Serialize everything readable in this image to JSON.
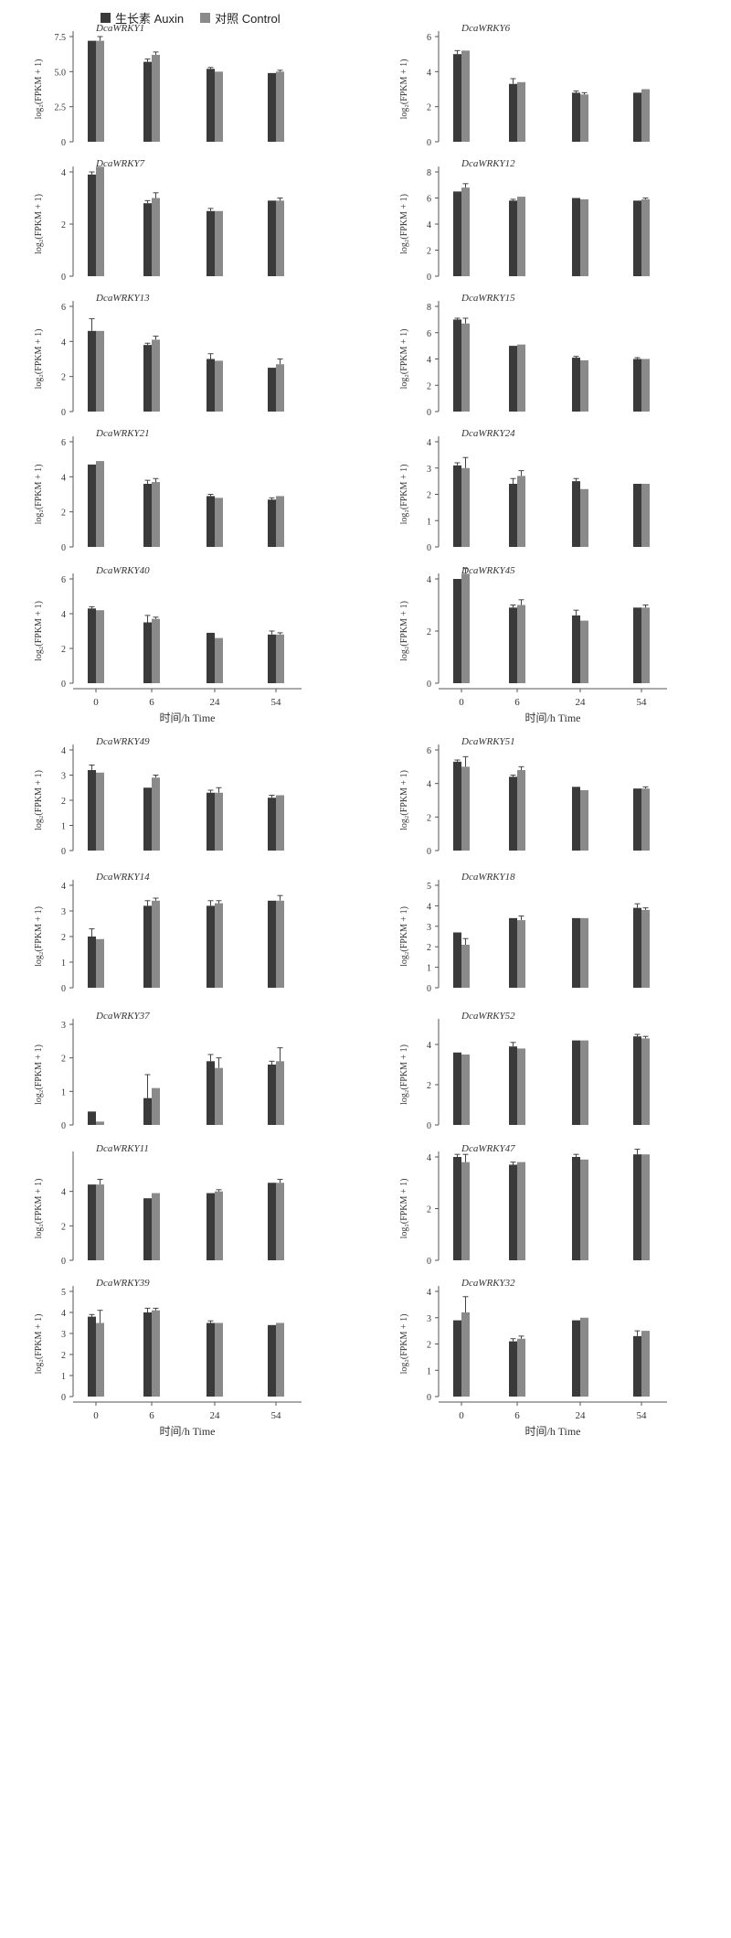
{
  "legend": {
    "auxin_label": "生长素 Auxin",
    "control_label": "对照 Control"
  },
  "colors": {
    "auxin": "#3a3a3a",
    "control": "#8a8a8a",
    "axis": "#555555",
    "err": "#444444"
  },
  "chart_data": [
    {
      "type": "bar",
      "title": "DcaWRKY1",
      "ylabel": "log₂(FPKM + 1)",
      "categories": [
        "0",
        "6",
        "24",
        "54"
      ],
      "ylim": [
        0,
        7.5
      ],
      "yticks": [
        "0",
        "2.5",
        "5.0",
        "7.5"
      ],
      "series": [
        {
          "name": "生长素 Auxin",
          "values": [
            7.2,
            5.7,
            5.2,
            4.9
          ],
          "err": [
            0,
            0.2,
            0.1,
            0
          ]
        },
        {
          "name": "对照 Control",
          "values": [
            7.2,
            6.2,
            5.0,
            5.0
          ],
          "err": [
            0.3,
            0.2,
            0,
            0.1
          ]
        }
      ]
    },
    {
      "type": "bar",
      "title": "DcaWRKY6",
      "ylabel": "log₂(FPKM + 1)",
      "categories": [
        "0",
        "6",
        "24",
        "54"
      ],
      "ylim": [
        0,
        6
      ],
      "yticks": [
        "0",
        "2",
        "4",
        "6"
      ],
      "series": [
        {
          "name": "生长素 Auxin",
          "values": [
            5.0,
            3.3,
            2.8,
            2.8
          ],
          "err": [
            0.2,
            0.3,
            0.1,
            0
          ]
        },
        {
          "name": "对照 Control",
          "values": [
            5.2,
            3.4,
            2.7,
            3.0
          ],
          "err": [
            0,
            0,
            0.1,
            0
          ]
        }
      ]
    },
    {
      "type": "bar",
      "title": "DcaWRKY7",
      "ylabel": "log₂(FPKM + 1)",
      "categories": [
        "0",
        "6",
        "24",
        "54"
      ],
      "ylim": [
        0,
        4
      ],
      "yticks": [
        "0",
        "2",
        "4"
      ],
      "series": [
        {
          "name": "生长素 Auxin",
          "values": [
            3.9,
            2.8,
            2.5,
            2.9
          ],
          "err": [
            0.1,
            0.1,
            0.1,
            0
          ]
        },
        {
          "name": "对照 Control",
          "values": [
            4.2,
            3.0,
            2.5,
            2.9
          ],
          "err": [
            0,
            0.2,
            0,
            0.1
          ]
        }
      ]
    },
    {
      "type": "bar",
      "title": "DcaWRKY12",
      "ylabel": "log₂(FPKM + 1)",
      "categories": [
        "0",
        "6",
        "24",
        "54"
      ],
      "ylim": [
        0,
        8
      ],
      "yticks": [
        "0",
        "2",
        "4",
        "6",
        "8"
      ],
      "series": [
        {
          "name": "生长素 Auxin",
          "values": [
            6.5,
            5.8,
            6.0,
            5.8
          ],
          "err": [
            0,
            0.1,
            0,
            0
          ]
        },
        {
          "name": "对照 Control",
          "values": [
            6.8,
            6.1,
            5.9,
            5.9
          ],
          "err": [
            0.3,
            0,
            0,
            0.1
          ]
        }
      ]
    },
    {
      "type": "bar",
      "title": "DcaWRKY13",
      "ylabel": "log₂(FPKM + 1)",
      "categories": [
        "0",
        "6",
        "24",
        "54"
      ],
      "ylim": [
        0,
        6
      ],
      "yticks": [
        "0",
        "2",
        "4",
        "6"
      ],
      "series": [
        {
          "name": "生长素 Auxin",
          "values": [
            4.6,
            3.8,
            3.0,
            2.5
          ],
          "err": [
            0.7,
            0.1,
            0.3,
            0
          ]
        },
        {
          "name": "对照 Control",
          "values": [
            4.6,
            4.1,
            2.9,
            2.7
          ],
          "err": [
            0,
            0.2,
            0,
            0.3
          ]
        }
      ]
    },
    {
      "type": "bar",
      "title": "DcaWRKY15",
      "ylabel": "log₂(FPKM + 1)",
      "categories": [
        "0",
        "6",
        "24",
        "54"
      ],
      "ylim": [
        0,
        8
      ],
      "yticks": [
        "0",
        "2",
        "4",
        "6",
        "8"
      ],
      "series": [
        {
          "name": "生长素 Auxin",
          "values": [
            7.0,
            5.0,
            4.1,
            4.0
          ],
          "err": [
            0.1,
            0,
            0.1,
            0.1
          ]
        },
        {
          "name": "对照 Control",
          "values": [
            6.7,
            5.1,
            3.9,
            4.0
          ],
          "err": [
            0.4,
            0,
            0,
            0
          ]
        }
      ]
    },
    {
      "type": "bar",
      "title": "DcaWRKY21",
      "ylabel": "log₂(FPKM + 1)",
      "categories": [
        "0",
        "6",
        "24",
        "54"
      ],
      "ylim": [
        0,
        6
      ],
      "yticks": [
        "0",
        "2",
        "4",
        "6"
      ],
      "series": [
        {
          "name": "生长素 Auxin",
          "values": [
            4.7,
            3.6,
            2.9,
            2.7
          ],
          "err": [
            0,
            0.2,
            0.1,
            0.1
          ]
        },
        {
          "name": "对照 Control",
          "values": [
            4.9,
            3.7,
            2.8,
            2.9
          ],
          "err": [
            0,
            0.2,
            0,
            0
          ]
        }
      ]
    },
    {
      "type": "bar",
      "title": "DcaWRKY24",
      "ylabel": "log₂(FPKM + 1)",
      "categories": [
        "0",
        "6",
        "24",
        "54"
      ],
      "ylim": [
        0,
        4
      ],
      "yticks": [
        "0",
        "1",
        "2",
        "3",
        "4"
      ],
      "series": [
        {
          "name": "生长素 Auxin",
          "values": [
            3.1,
            2.4,
            2.5,
            2.4
          ],
          "err": [
            0.1,
            0.2,
            0.1,
            0
          ]
        },
        {
          "name": "对照 Control",
          "values": [
            3.0,
            2.7,
            2.2,
            2.4
          ],
          "err": [
            0.4,
            0.2,
            0,
            0
          ]
        }
      ]
    },
    {
      "type": "bar",
      "title": "DcaWRKY40",
      "ylabel": "log₂(FPKM + 1)",
      "categories": [
        "0",
        "6",
        "24",
        "54"
      ],
      "ylim": [
        0,
        6
      ],
      "yticks": [
        "0",
        "2",
        "4",
        "6"
      ],
      "series": [
        {
          "name": "生长素 Auxin",
          "values": [
            4.3,
            3.5,
            2.9,
            2.8
          ],
          "err": [
            0.1,
            0.4,
            0,
            0.2
          ]
        },
        {
          "name": "对照 Control",
          "values": [
            4.2,
            3.7,
            2.6,
            2.8
          ],
          "err": [
            0,
            0.1,
            0,
            0.1
          ]
        }
      ]
    },
    {
      "type": "bar",
      "title": "DcaWRKY45",
      "ylabel": "log₂(FPKM + 1)",
      "categories": [
        "0",
        "6",
        "24",
        "54"
      ],
      "ylim": [
        0,
        4
      ],
      "yticks": [
        "0",
        "2",
        "4"
      ],
      "series": [
        {
          "name": "生长素 Auxin",
          "values": [
            4.0,
            2.9,
            2.6,
            2.9
          ],
          "err": [
            0,
            0.1,
            0.2,
            0
          ]
        },
        {
          "name": "对照 Control",
          "values": [
            4.2,
            3.0,
            2.4,
            2.9
          ],
          "err": [
            0.2,
            0.2,
            0,
            0.1
          ]
        }
      ]
    },
    {
      "type": "bar",
      "title": "DcaWRKY49",
      "ylabel": "log₂(FPKM + 1)",
      "categories": [
        "0",
        "6",
        "24",
        "54"
      ],
      "ylim": [
        0,
        4
      ],
      "yticks": [
        "0",
        "1",
        "2",
        "3",
        "4"
      ],
      "series": [
        {
          "name": "生长素 Auxin",
          "values": [
            3.2,
            2.5,
            2.3,
            2.1
          ],
          "err": [
            0.2,
            0,
            0.1,
            0.1
          ]
        },
        {
          "name": "对照 Control",
          "values": [
            3.1,
            2.9,
            2.3,
            2.2
          ],
          "err": [
            0,
            0.1,
            0.2,
            0
          ]
        }
      ]
    },
    {
      "type": "bar",
      "title": "DcaWRKY51",
      "ylabel": "log₂(FPKM + 1)",
      "categories": [
        "0",
        "6",
        "24",
        "54"
      ],
      "ylim": [
        0,
        6
      ],
      "yticks": [
        "0",
        "2",
        "4",
        "6"
      ],
      "series": [
        {
          "name": "生长素 Auxin",
          "values": [
            5.3,
            4.4,
            3.8,
            3.7
          ],
          "err": [
            0.1,
            0.1,
            0,
            0
          ]
        },
        {
          "name": "对照 Control",
          "values": [
            5.0,
            4.8,
            3.6,
            3.7
          ],
          "err": [
            0.6,
            0.2,
            0,
            0.1
          ]
        }
      ]
    },
    {
      "type": "bar",
      "title": "DcaWRKY14",
      "ylabel": "log₂(FPKM + 1)",
      "categories": [
        "0",
        "6",
        "24",
        "54"
      ],
      "ylim": [
        0,
        4
      ],
      "yticks": [
        "0",
        "1",
        "2",
        "3",
        "4"
      ],
      "series": [
        {
          "name": "生长素 Auxin",
          "values": [
            2.0,
            3.2,
            3.2,
            3.4
          ],
          "err": [
            0.3,
            0.2,
            0.2,
            0
          ]
        },
        {
          "name": "对照 Control",
          "values": [
            1.9,
            3.4,
            3.3,
            3.4
          ],
          "err": [
            0,
            0.1,
            0.1,
            0.2
          ]
        }
      ]
    },
    {
      "type": "bar",
      "title": "DcaWRKY18",
      "ylabel": "log₂(FPKM + 1)",
      "categories": [
        "0",
        "6",
        "24",
        "54"
      ],
      "ylim": [
        0,
        5
      ],
      "yticks": [
        "0",
        "1",
        "2",
        "3",
        "4",
        "5"
      ],
      "series": [
        {
          "name": "生长素 Auxin",
          "values": [
            2.7,
            3.4,
            3.4,
            3.9
          ],
          "err": [
            0,
            0,
            0,
            0.2
          ]
        },
        {
          "name": "对照 Control",
          "values": [
            2.1,
            3.3,
            3.4,
            3.8
          ],
          "err": [
            0.3,
            0.2,
            0,
            0.1
          ]
        }
      ]
    },
    {
      "type": "bar",
      "title": "DcaWRKY37",
      "ylabel": "log₂(FPKM + 1)",
      "categories": [
        "0",
        "6",
        "24",
        "54"
      ],
      "ylim": [
        0,
        3
      ],
      "yticks": [
        "0",
        "1",
        "2",
        "3"
      ],
      "series": [
        {
          "name": "生长素 Auxin",
          "values": [
            0.4,
            0.8,
            1.9,
            1.8
          ],
          "err": [
            0,
            0.7,
            0.2,
            0.1
          ]
        },
        {
          "name": "对照 Control",
          "values": [
            0.1,
            1.1,
            1.7,
            1.9
          ],
          "err": [
            0,
            0,
            0.3,
            0.4
          ]
        }
      ]
    },
    {
      "type": "bar",
      "title": "DcaWRKY52",
      "ylabel": "log₂(FPKM + 1)",
      "categories": [
        "0",
        "6",
        "24",
        "54"
      ],
      "ylim": [
        0,
        5
      ],
      "yticks": [
        "0",
        "2",
        "4"
      ],
      "series": [
        {
          "name": "生长素 Auxin",
          "values": [
            3.6,
            3.9,
            4.2,
            4.4
          ],
          "err": [
            0,
            0.2,
            0,
            0.1
          ]
        },
        {
          "name": "对照 Control",
          "values": [
            3.5,
            3.8,
            4.2,
            4.3
          ],
          "err": [
            0,
            0,
            0,
            0.1
          ]
        }
      ]
    },
    {
      "type": "bar",
      "title": "DcaWRKY11",
      "ylabel": "log₂(FPKM + 1)",
      "categories": [
        "0",
        "6",
        "24",
        "54"
      ],
      "ylim": [
        0,
        6
      ],
      "yticks": [
        "0",
        "2",
        "4"
      ],
      "series": [
        {
          "name": "生长素 Auxin",
          "values": [
            4.4,
            3.6,
            3.9,
            4.5
          ],
          "err": [
            0,
            0,
            0,
            0
          ]
        },
        {
          "name": "对照 Control",
          "values": [
            4.4,
            3.9,
            4.0,
            4.5
          ],
          "err": [
            0.3,
            0,
            0.1,
            0.2
          ]
        }
      ]
    },
    {
      "type": "bar",
      "title": "DcaWRKY47",
      "ylabel": "log₂(FPKM + 1)",
      "categories": [
        "0",
        "6",
        "24",
        "54"
      ],
      "ylim": [
        0,
        4
      ],
      "yticks": [
        "0",
        "2",
        "4"
      ],
      "series": [
        {
          "name": "生长素 Auxin",
          "values": [
            4.0,
            3.7,
            4.0,
            4.1
          ],
          "err": [
            0.1,
            0.1,
            0.1,
            0.2
          ]
        },
        {
          "name": "对照 Control",
          "values": [
            3.8,
            3.8,
            3.9,
            4.1
          ],
          "err": [
            0.3,
            0,
            0,
            0
          ]
        }
      ]
    },
    {
      "type": "bar",
      "title": "DcaWRKY39",
      "xlabel": "时间/h  Time",
      "ylabel": "log₂(FPKM + 1)",
      "categories": [
        "0",
        "6",
        "24",
        "54"
      ],
      "ylim": [
        0,
        5
      ],
      "yticks": [
        "0",
        "1",
        "2",
        "3",
        "4",
        "5"
      ],
      "series": [
        {
          "name": "生长素 Auxin",
          "values": [
            3.8,
            4.0,
            3.5,
            3.4
          ],
          "err": [
            0.1,
            0.2,
            0.1,
            0
          ]
        },
        {
          "name": "对照 Control",
          "values": [
            3.5,
            4.1,
            3.5,
            3.5
          ],
          "err": [
            0.6,
            0.1,
            0,
            0
          ]
        }
      ]
    },
    {
      "type": "bar",
      "title": "DcaWRKY32",
      "xlabel": "时间/h  Time",
      "ylabel": "log₂(FPKM + 1)",
      "categories": [
        "0",
        "6",
        "24",
        "54"
      ],
      "ylim": [
        0,
        4
      ],
      "yticks": [
        "0",
        "1",
        "2",
        "3",
        "4"
      ],
      "series": [
        {
          "name": "生长素 Auxin",
          "values": [
            2.9,
            2.1,
            2.9,
            2.3
          ],
          "err": [
            0,
            0.1,
            0,
            0.2
          ]
        },
        {
          "name": "对照 Control",
          "values": [
            3.2,
            2.2,
            3.0,
            2.5
          ],
          "err": [
            0.6,
            0.1,
            0,
            0
          ]
        }
      ]
    }
  ],
  "time_axis_label": "时间/h  Time"
}
